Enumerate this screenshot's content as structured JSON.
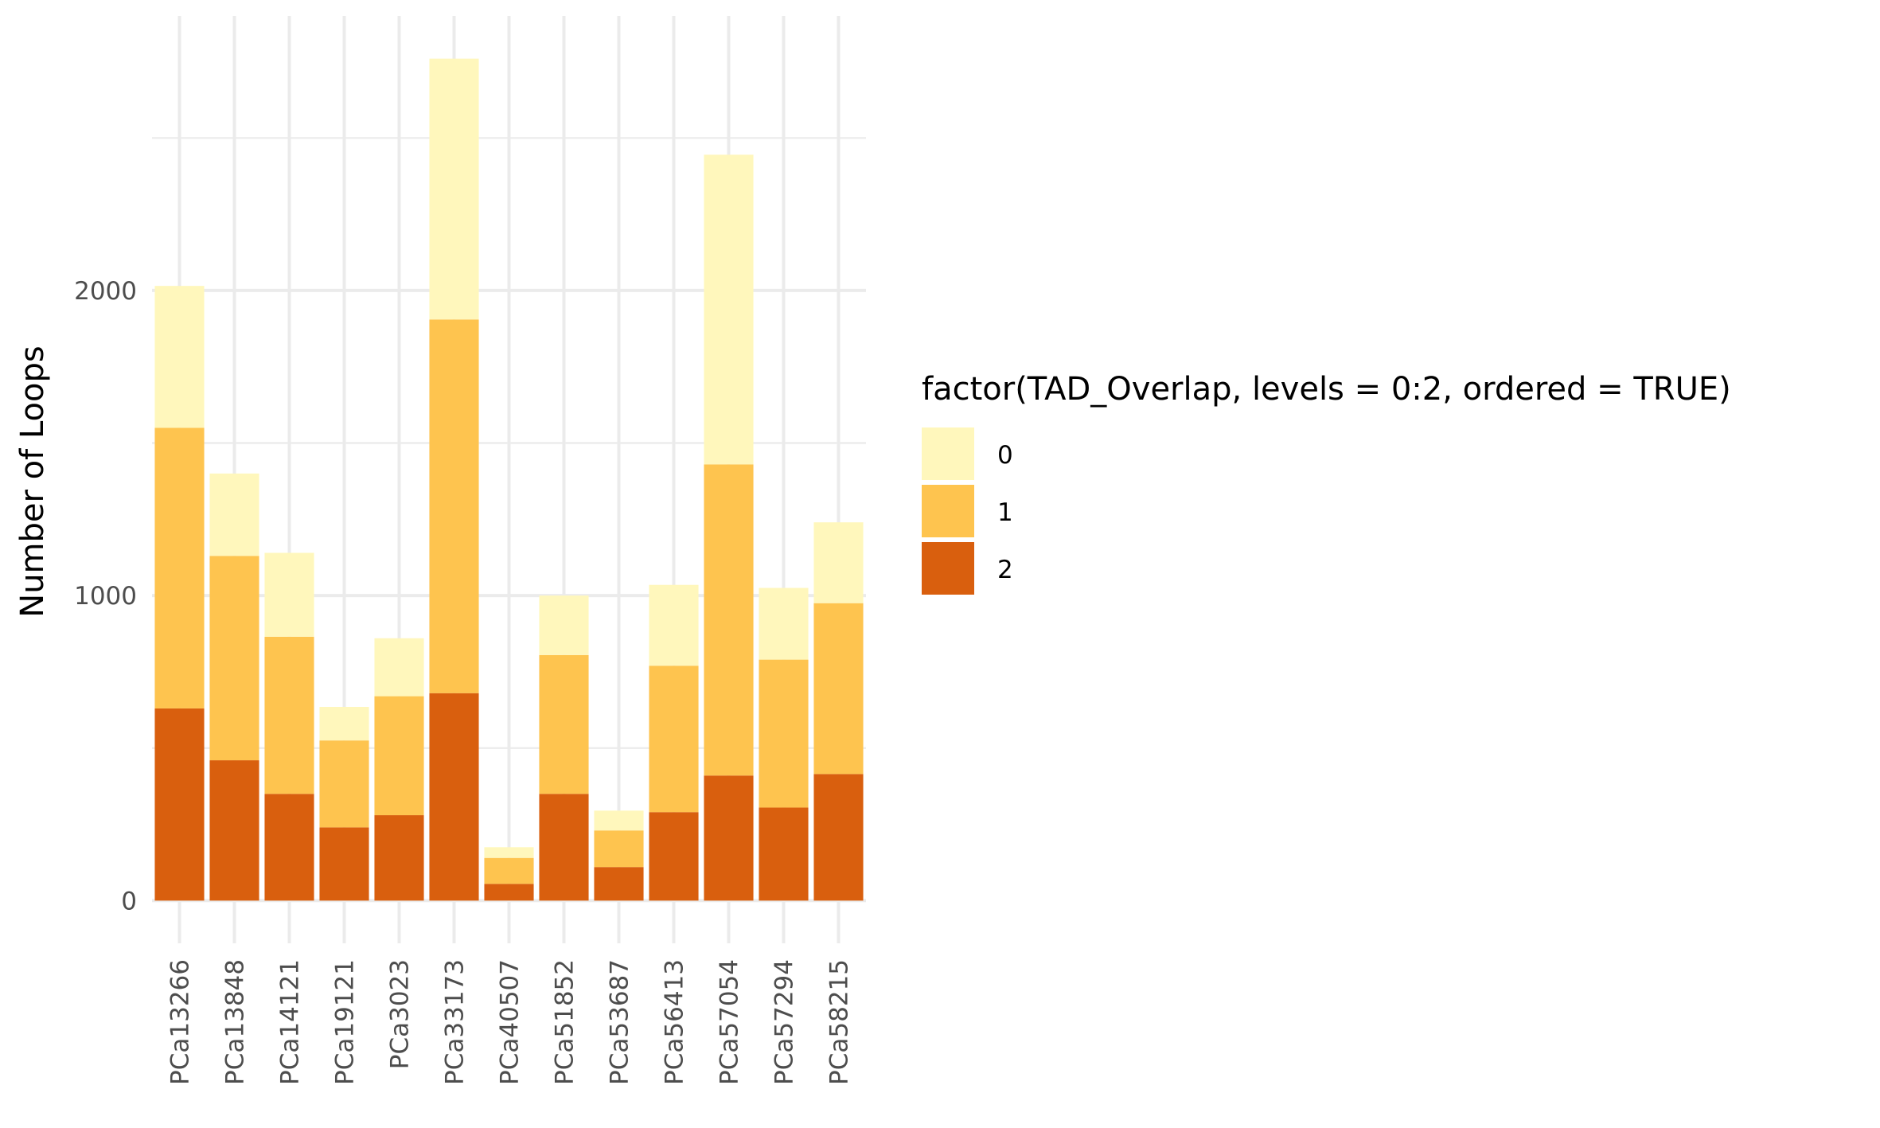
{
  "chart_data": {
    "type": "bar",
    "stacked": true,
    "title": "",
    "xlabel": "",
    "ylabel": "Number of Loops",
    "ylim": [
      -140,
      2900
    ],
    "y_ticks": [
      0,
      1000,
      2000
    ],
    "y_tick_labels": [
      "0",
      "1000",
      "2000"
    ],
    "categories": [
      "PCa13266",
      "PCa13848",
      "PCa14121",
      "PCa19121",
      "PCa3023",
      "PCa33173",
      "PCa40507",
      "PCa51852",
      "PCa53687",
      "PCa56413",
      "PCa57054",
      "PCa57294",
      "PCa58215"
    ],
    "series": [
      {
        "name": "2",
        "color": "#d95f0e",
        "values": [
          630,
          460,
          350,
          240,
          280,
          680,
          55,
          350,
          110,
          290,
          410,
          305,
          415
        ]
      },
      {
        "name": "1",
        "color": "#fec44f",
        "values": [
          920,
          670,
          515,
          285,
          390,
          1225,
          85,
          455,
          120,
          480,
          1020,
          485,
          560
        ]
      },
      {
        "name": "0",
        "color": "#fff7bc",
        "values": [
          465,
          270,
          275,
          110,
          190,
          855,
          35,
          195,
          65,
          265,
          1015,
          235,
          265
        ]
      }
    ],
    "legend": {
      "title": "factor(TAD_Overlap, levels = 0:2, ordered = TRUE)",
      "position": "right",
      "items": [
        {
          "label": "0",
          "color": "#fff7bc"
        },
        {
          "label": "1",
          "color": "#fec44f"
        },
        {
          "label": "2",
          "color": "#d95f0e"
        }
      ]
    },
    "grid": true
  }
}
